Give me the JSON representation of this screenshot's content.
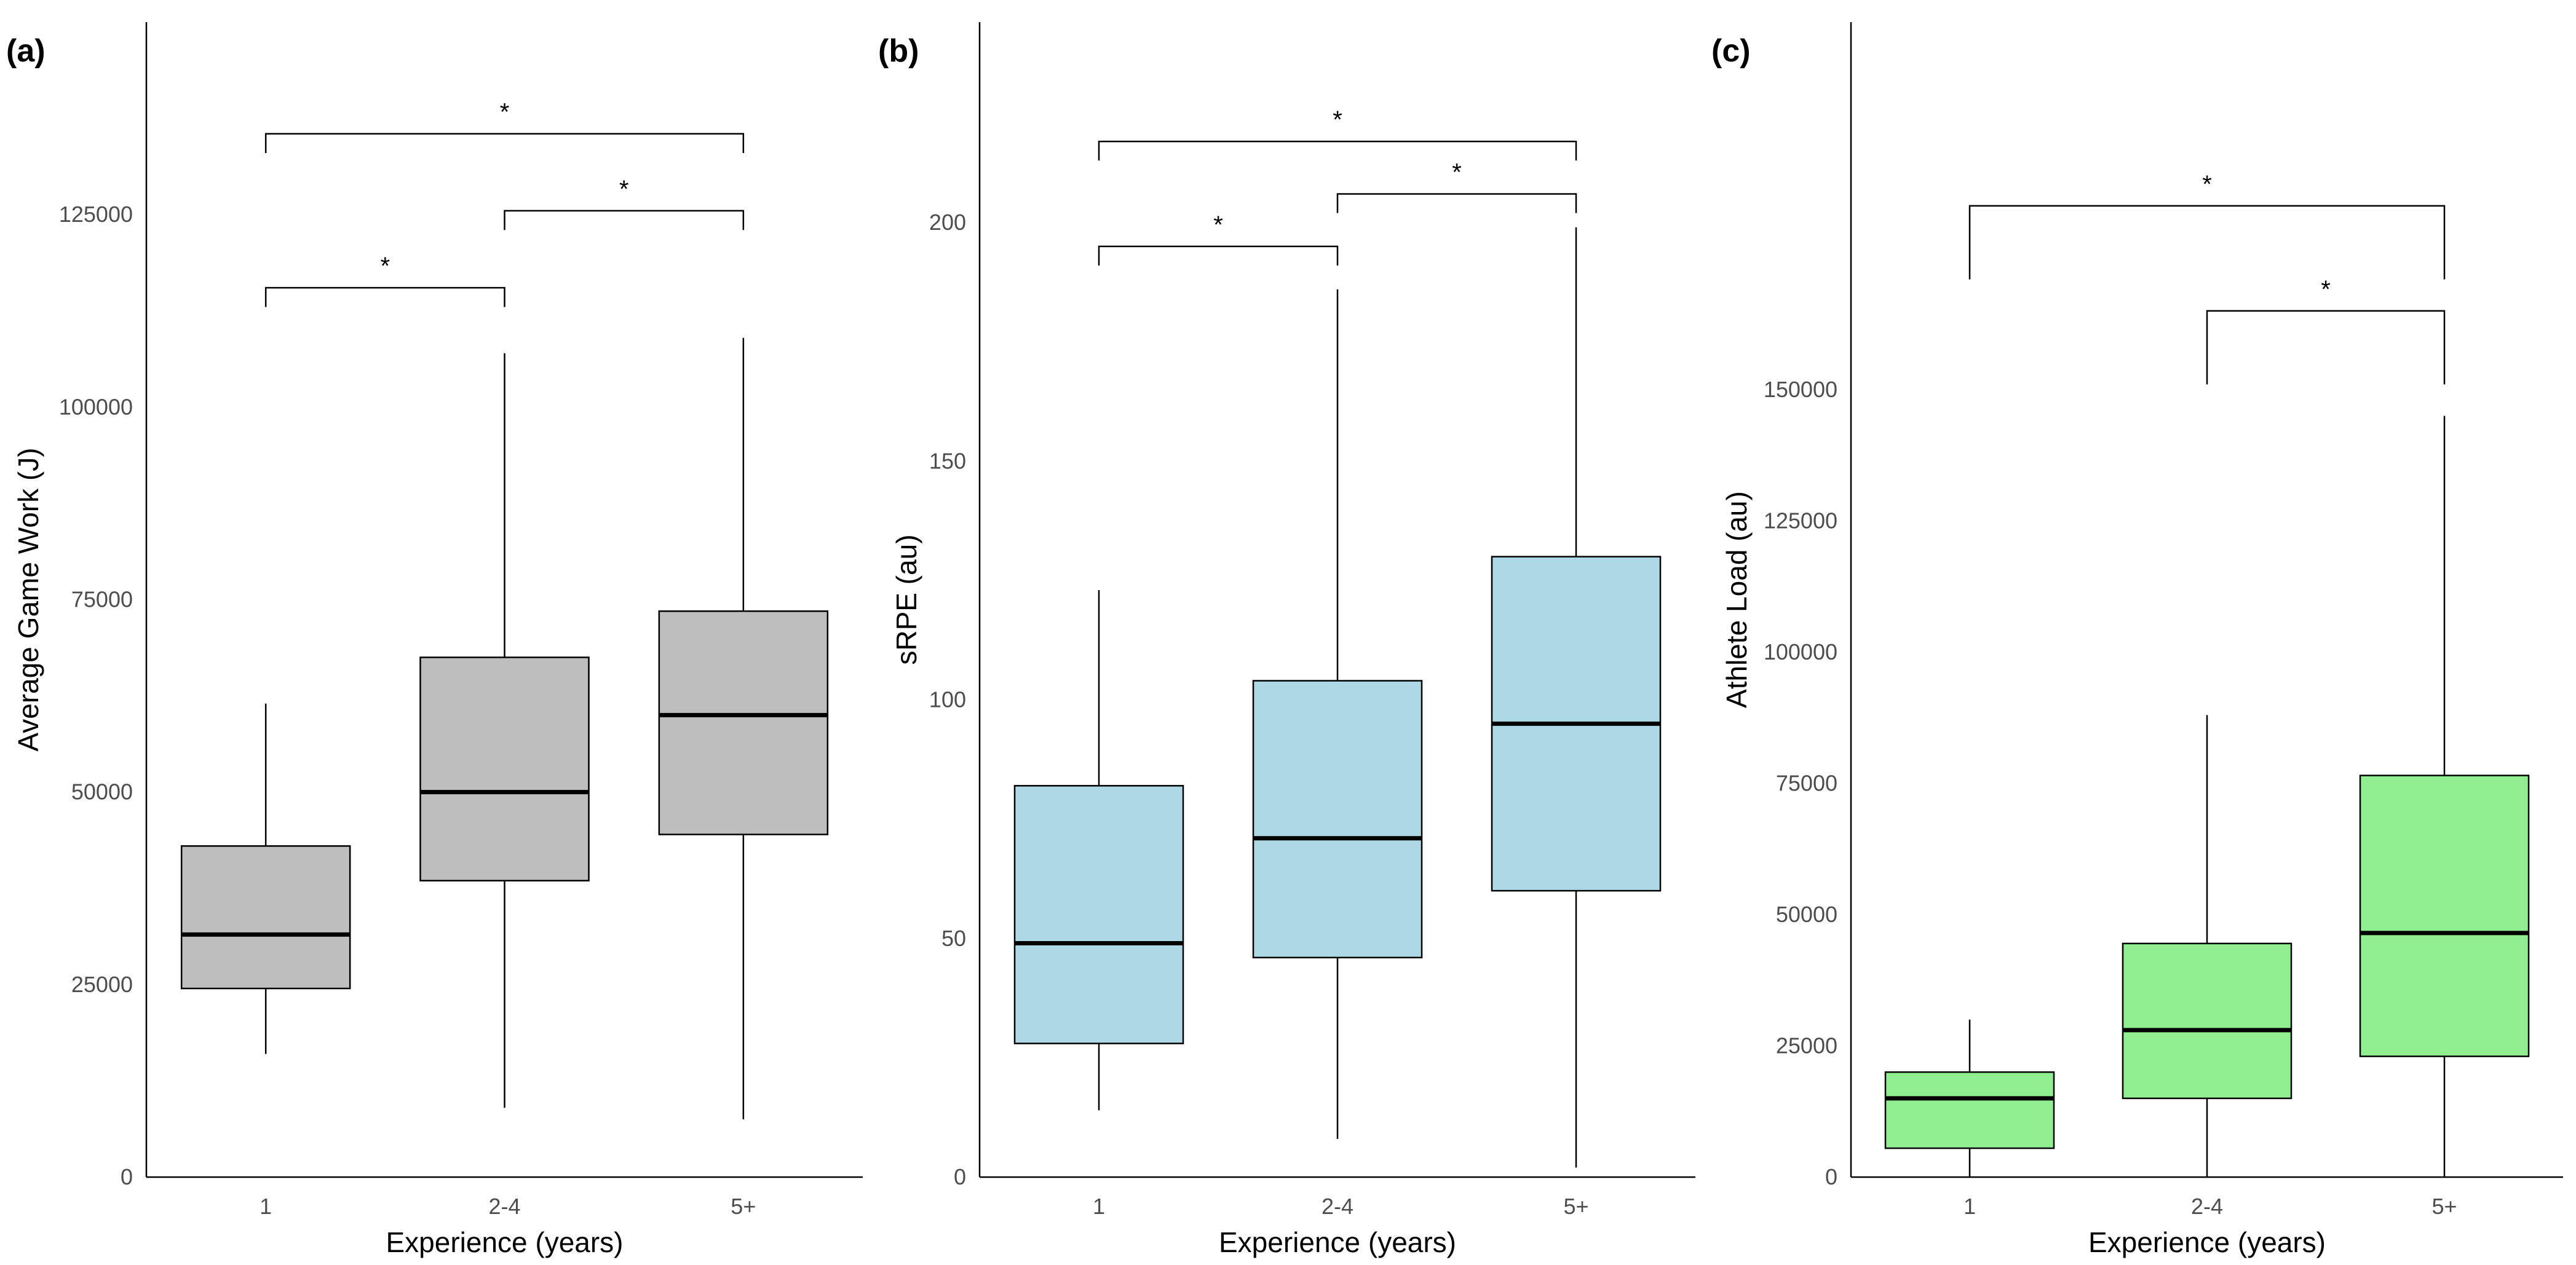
{
  "chart_data": [
    {
      "type": "box",
      "panel_label": "(a)",
      "title": "",
      "xlabel": "Experience (years)",
      "ylabel": "Average Game Work (J)",
      "categories": [
        "1",
        "2-4",
        "5+"
      ],
      "ylim": [
        0,
        150000
      ],
      "yticks": [
        0,
        25000,
        50000,
        75000,
        100000,
        125000
      ],
      "ytick_labels": [
        "0",
        "25000",
        "50000",
        "75000",
        "100000",
        "125000"
      ],
      "fill_color": "#bebebe",
      "boxes": [
        {
          "category": "1",
          "whisker_low": 16000,
          "q1": 24500,
          "median": 31500,
          "q3": 43000,
          "whisker_high": 61500
        },
        {
          "category": "2-4",
          "whisker_low": 9000,
          "q1": 38500,
          "median": 50000,
          "q3": 67500,
          "whisker_high": 107000
        },
        {
          "category": "5+",
          "whisker_low": 7500,
          "q1": 44500,
          "median": 60000,
          "q3": 73500,
          "whisker_high": 109000
        }
      ],
      "significance": [
        {
          "from": "1",
          "to": "2-4",
          "y": 115500,
          "drop": 2500,
          "label": "*"
        },
        {
          "from": "2-4",
          "to": "5+",
          "y": 125500,
          "drop": 2500,
          "label": "*"
        },
        {
          "from": "1",
          "to": "5+",
          "y": 135500,
          "drop": 2500,
          "label": "*"
        }
      ]
    },
    {
      "type": "box",
      "panel_label": "(b)",
      "title": "",
      "xlabel": "Experience (years)",
      "ylabel": "sRPE (au)",
      "categories": [
        "1",
        "2-4",
        "5+"
      ],
      "ylim": [
        0,
        242
      ],
      "yticks": [
        0,
        50,
        100,
        150,
        200
      ],
      "ytick_labels": [
        "0",
        "50",
        "100",
        "150",
        "200"
      ],
      "fill_color": "#add8e6",
      "boxes": [
        {
          "category": "1",
          "whisker_low": 14,
          "q1": 28,
          "median": 49,
          "q3": 82,
          "whisker_high": 123
        },
        {
          "category": "2-4",
          "whisker_low": 8,
          "q1": 46,
          "median": 71,
          "q3": 104,
          "whisker_high": 186
        },
        {
          "category": "5+",
          "whisker_low": 2,
          "q1": 60,
          "median": 95,
          "q3": 130,
          "whisker_high": 199
        }
      ],
      "significance": [
        {
          "from": "1",
          "to": "2-4",
          "y": 195,
          "drop": 4,
          "label": "*"
        },
        {
          "from": "2-4",
          "to": "5+",
          "y": 206,
          "drop": 4,
          "label": "*"
        },
        {
          "from": "1",
          "to": "5+",
          "y": 217,
          "drop": 4,
          "label": "*"
        }
      ]
    },
    {
      "type": "box",
      "panel_label": "(c)",
      "title": "",
      "xlabel": "Experience (years)",
      "ylabel": "Athlete Load (au)",
      "categories": [
        "1",
        "2-4",
        "5+"
      ],
      "ylim": [
        0,
        220000
      ],
      "yticks": [
        0,
        25000,
        50000,
        75000,
        100000,
        125000,
        150000
      ],
      "ytick_labels": [
        "0",
        "25000",
        "50000",
        "75000",
        "100000",
        "125000",
        "150000"
      ],
      "fill_color": "#90ee90",
      "boxes": [
        {
          "category": "1",
          "whisker_low": 0,
          "q1": 5500,
          "median": 15000,
          "q3": 20000,
          "whisker_high": 30000
        },
        {
          "category": "2-4",
          "whisker_low": 0,
          "q1": 15000,
          "median": 28000,
          "q3": 44500,
          "whisker_high": 88000
        },
        {
          "category": "5+",
          "whisker_low": 0,
          "q1": 23000,
          "median": 46500,
          "q3": 76500,
          "whisker_high": 145000
        }
      ],
      "significance": [
        {
          "from": "2-4",
          "to": "5+",
          "y": 165000,
          "drop": 14000,
          "label": "*"
        },
        {
          "from": "1",
          "to": "5+",
          "y": 185000,
          "drop": 14000,
          "label": "*"
        }
      ]
    }
  ]
}
